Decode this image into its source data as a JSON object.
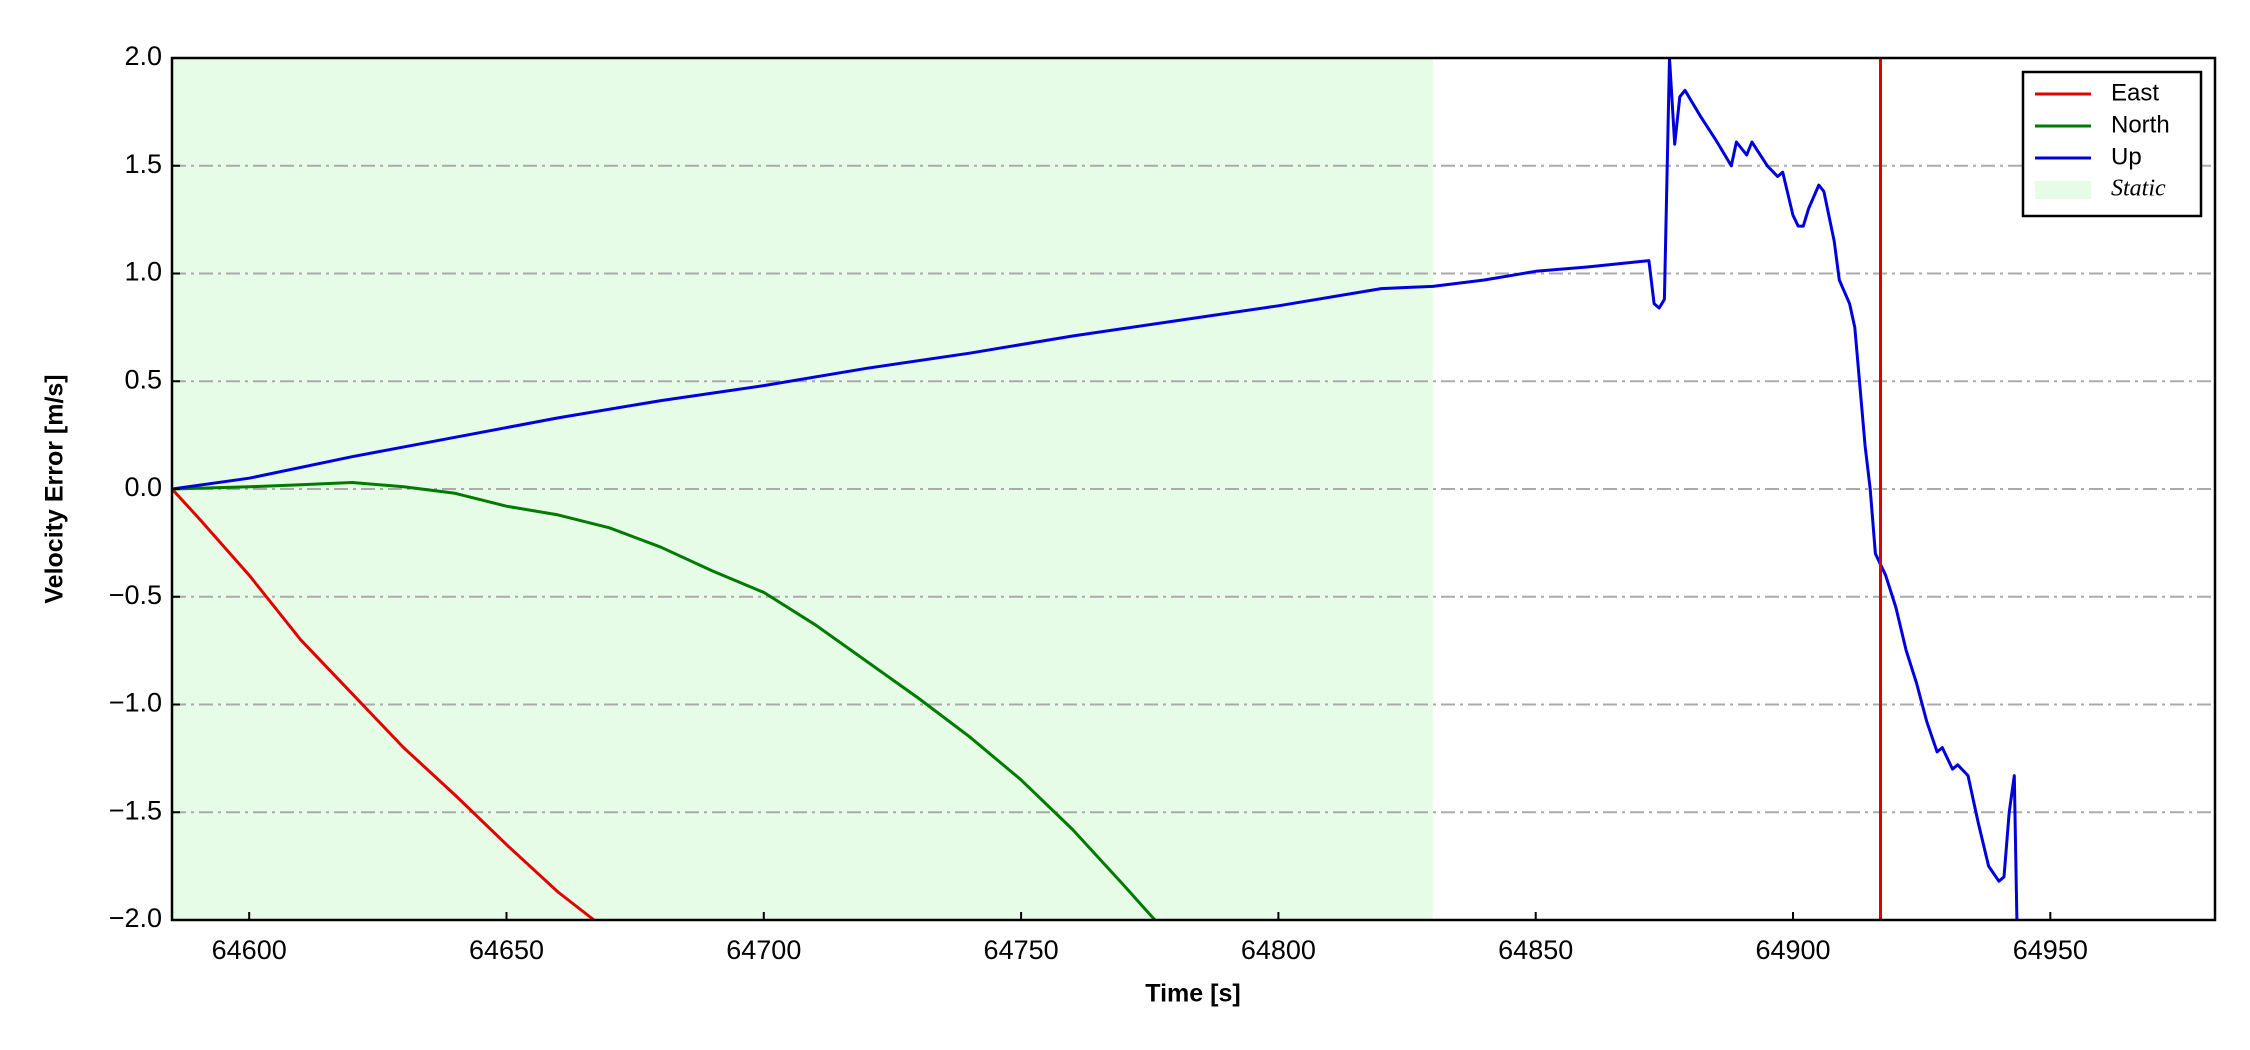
{
  "chart_data": {
    "type": "line",
    "x_label": "Time [s]",
    "y_label": "Velocity Error [m/s]",
    "xlim": [
      64585,
      64982
    ],
    "ylim": [
      -2.0,
      2.0
    ],
    "xticks": [
      64600,
      64650,
      64700,
      64750,
      64800,
      64850,
      64900,
      64950
    ],
    "yticks": [
      {
        "value": -2.0,
        "label": "−2.0"
      },
      {
        "value": -1.5,
        "label": "−1.5"
      },
      {
        "value": -1.0,
        "label": "−1.0"
      },
      {
        "value": -0.5,
        "label": "−0.5"
      },
      {
        "value": 0.0,
        "label": "0.0"
      },
      {
        "value": 0.5,
        "label": "0.5"
      },
      {
        "value": 1.0,
        "label": "1.0"
      },
      {
        "value": 1.5,
        "label": "1.5"
      },
      {
        "value": 2.0,
        "label": "2.0"
      }
    ],
    "grid": true,
    "legend": "upper right",
    "static_region": {
      "name": "Static",
      "x": [
        64585,
        64830
      ],
      "color": "#e6fce6"
    },
    "vlines": [
      {
        "x": 64917,
        "color": "#e00000"
      }
    ],
    "series": [
      {
        "name": "East",
        "color": "#e00000",
        "x": [
          64585,
          64590,
          64600,
          64610,
          64620,
          64630,
          64640,
          64650,
          64660,
          64667
        ],
        "values": [
          0,
          -0.13,
          -0.4,
          -0.7,
          -0.95,
          -1.2,
          -1.42,
          -1.65,
          -1.87,
          -2.0
        ]
      },
      {
        "name": "North",
        "color": "#007a00",
        "x": [
          64585,
          64600,
          64610,
          64620,
          64630,
          64640,
          64650,
          64660,
          64670,
          64680,
          64690,
          64700,
          64710,
          64720,
          64730,
          64740,
          64750,
          64760,
          64770,
          64776
        ],
        "values": [
          0,
          0.01,
          0.02,
          0.03,
          0.01,
          -0.02,
          -0.08,
          -0.12,
          -0.18,
          -0.27,
          -0.38,
          -0.48,
          -0.63,
          -0.8,
          -0.97,
          -1.15,
          -1.35,
          -1.58,
          -1.84,
          -2.0
        ]
      },
      {
        "name": "Up",
        "color": "#0000dd",
        "x": [
          64585,
          64600,
          64620,
          64640,
          64660,
          64680,
          64700,
          64720,
          64740,
          64760,
          64780,
          64800,
          64820,
          64830,
          64840,
          64850,
          64860,
          64872,
          64873,
          64874,
          64875,
          64876,
          64877,
          64878,
          64879,
          64882,
          64885,
          64888,
          64889,
          64891,
          64892,
          64895,
          64897,
          64898,
          64900,
          64901,
          64902,
          64903,
          64905,
          64906,
          64908,
          64909,
          64911,
          64912,
          64914,
          64915,
          64916,
          64918,
          64920,
          64922,
          64924,
          64926,
          64928,
          64929,
          64931,
          64932,
          64934,
          64936,
          64938,
          64940,
          64941,
          64942,
          64943,
          64943.5
        ],
        "values": [
          0,
          0.05,
          0.15,
          0.24,
          0.33,
          0.41,
          0.48,
          0.56,
          0.63,
          0.71,
          0.78,
          0.85,
          0.93,
          0.94,
          0.97,
          1.01,
          1.03,
          1.06,
          0.86,
          0.84,
          0.88,
          2.0,
          1.6,
          1.82,
          1.85,
          1.73,
          1.62,
          1.5,
          1.61,
          1.55,
          1.61,
          1.5,
          1.45,
          1.47,
          1.27,
          1.22,
          1.22,
          1.3,
          1.41,
          1.38,
          1.15,
          0.97,
          0.86,
          0.75,
          0.2,
          0,
          -0.3,
          -0.4,
          -0.55,
          -0.75,
          -0.9,
          -1.08,
          -1.22,
          -1.2,
          -1.3,
          -1.28,
          -1.33,
          -1.55,
          -1.75,
          -1.82,
          -1.8,
          -1.5,
          -1.33,
          -2.0
        ]
      }
    ]
  }
}
